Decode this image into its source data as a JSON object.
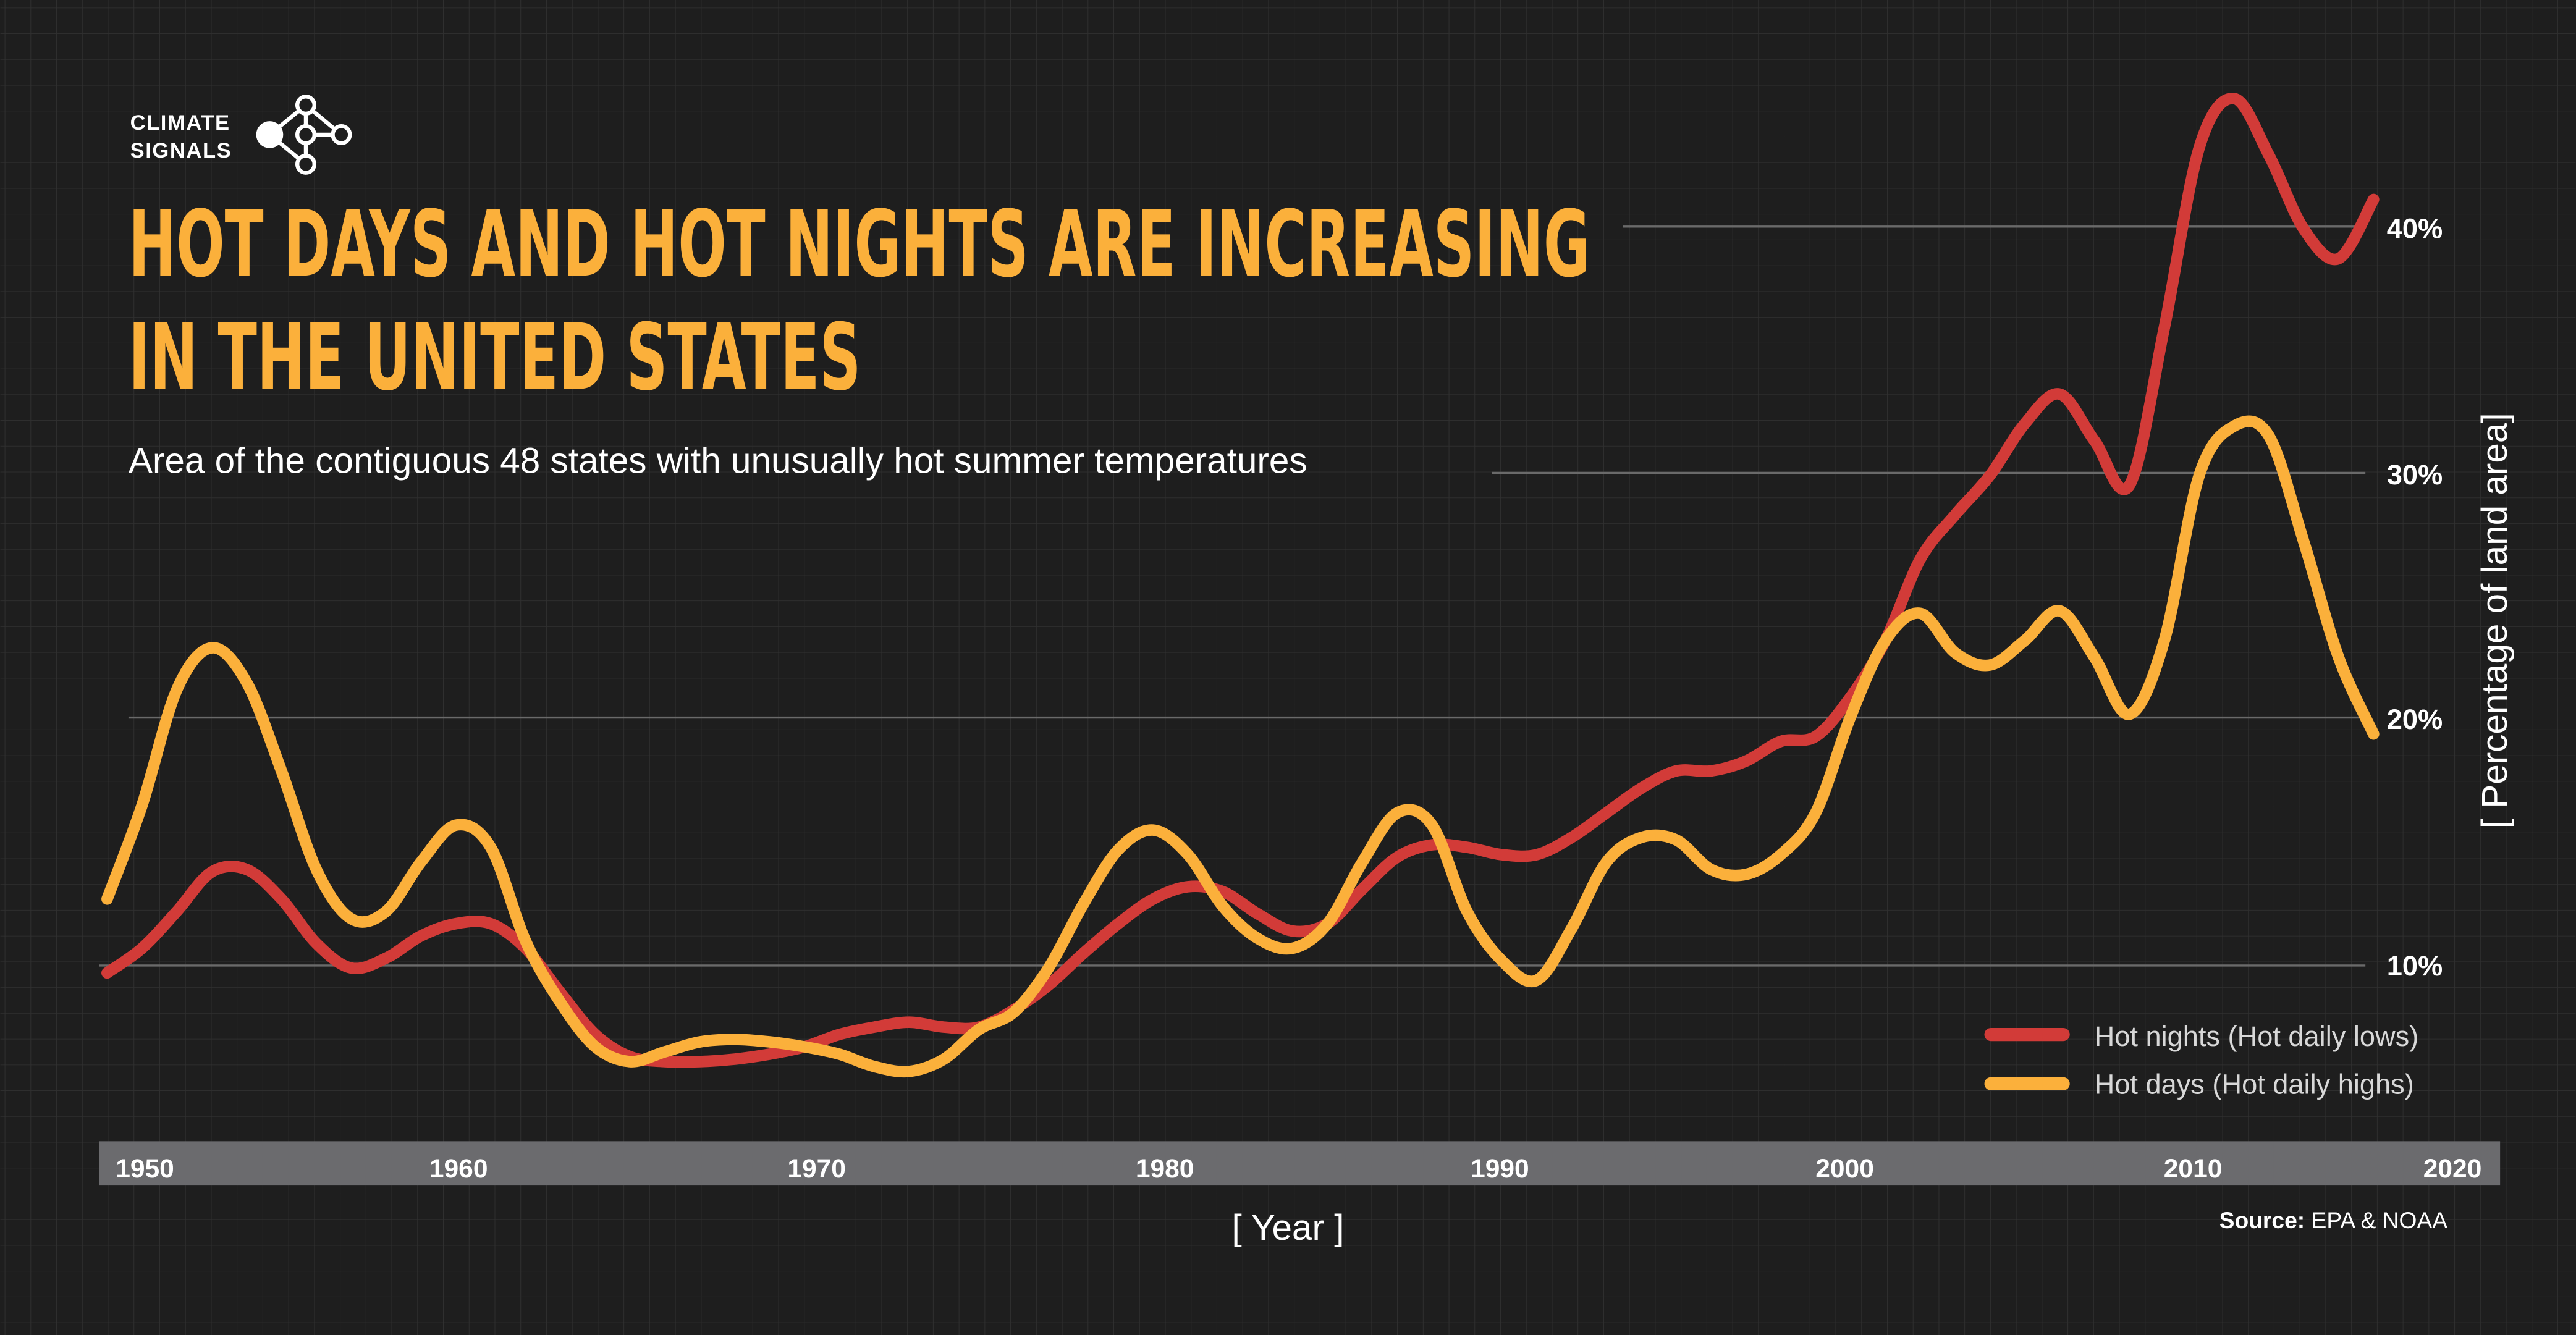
{
  "logo": {
    "line1": "CLIMATE",
    "line2": "SIGNALS",
    "icon": "network-nodes-icon"
  },
  "title": {
    "line1": "HOT DAYS AND HOT NIGHTS ARE INCREASING",
    "line2": "IN THE UNITED STATES"
  },
  "subtitle": "Area of the contiguous 48 states with unusually hot summer temperatures",
  "source": {
    "label": "Source:",
    "value": "EPA & NOAA"
  },
  "colors": {
    "background": "#1e1e1e",
    "grid": "#333333",
    "title": "#fbb03b",
    "hot_nights": "#d23b38",
    "hot_days": "#fbb03b",
    "axis_band": "#6b6b6e"
  },
  "chart_data": {
    "type": "line",
    "xlabel": "[ Year ]",
    "ylabel": "[ Percentage of land area]",
    "xlim": [
      1948.6,
      2018
    ],
    "ylim": [
      0,
      47
    ],
    "x_ticks": [
      "1950",
      "1960",
      "1970",
      "1980",
      "1990",
      "2000",
      "2010",
      "2020"
    ],
    "y_ticks": [
      {
        "value": 10,
        "label": "10%"
      },
      {
        "value": 20,
        "label": "20%"
      },
      {
        "value": 30,
        "label": "30%"
      },
      {
        "value": 40,
        "label": "40%"
      }
    ],
    "grid": true,
    "legend_position": "bottom-right",
    "x": [
      1950,
      1951,
      1952,
      1953,
      1954,
      1955,
      1956,
      1957,
      1958,
      1959,
      1960,
      1961,
      1962,
      1963,
      1964,
      1965,
      1966,
      1967,
      1968,
      1969,
      1970,
      1971,
      1972,
      1973,
      1974,
      1975,
      1976,
      1977,
      1978,
      1979,
      1980,
      1981,
      1982,
      1983,
      1984,
      1985,
      1986,
      1987,
      1988,
      1989,
      1990,
      1991,
      1992,
      1993,
      1994,
      1995,
      1996,
      1997,
      1998,
      1999,
      2000,
      2001,
      2002,
      2003,
      2004,
      2005,
      2006,
      2007,
      2008,
      2009,
      2010,
      2011,
      2012,
      2013,
      2014,
      2015
    ],
    "series": [
      {
        "name": "Hot nights (Hot daily lows)",
        "color": "#d23b38",
        "values": [
          9.7,
          10.7,
          12.2,
          13.8,
          13.9,
          12.7,
          10.9,
          9.9,
          10.3,
          11.2,
          11.7,
          11.7,
          10.7,
          8.9,
          7.2,
          6.3,
          6.1,
          6.1,
          6.2,
          6.4,
          6.7,
          7.2,
          7.5,
          7.7,
          7.5,
          7.5,
          8.2,
          9.2,
          10.5,
          11.7,
          12.7,
          13.2,
          13.0,
          12.1,
          11.4,
          11.7,
          13.1,
          14.4,
          14.9,
          14.8,
          14.5,
          14.5,
          15.2,
          16.2,
          17.2,
          17.9,
          17.9,
          18.3,
          19.1,
          19.3,
          20.9,
          23.2,
          26.5,
          28.3,
          29.9,
          32.0,
          33.2,
          31.3,
          29.5,
          35.9,
          43.2,
          45.2,
          42.9,
          39.9,
          38.7,
          41.1
        ]
      },
      {
        "name": "Hot days (Hot daily highs)",
        "color": "#fbb03b",
        "values": [
          12.7,
          16.5,
          21.2,
          22.9,
          21.5,
          17.9,
          13.9,
          11.9,
          12.2,
          14.2,
          15.7,
          14.8,
          11.0,
          8.5,
          6.7,
          6.1,
          6.5,
          6.9,
          7.0,
          6.9,
          6.7,
          6.4,
          5.9,
          5.7,
          6.2,
          7.4,
          8.1,
          9.9,
          12.5,
          14.7,
          15.5,
          14.5,
          12.4,
          11.1,
          10.7,
          11.7,
          14.2,
          16.2,
          15.7,
          12.2,
          10.2,
          9.4,
          11.5,
          14.2,
          15.2,
          15.1,
          13.9,
          13.7,
          14.5,
          16.2,
          20.1,
          23.2,
          24.3,
          22.7,
          22.2,
          23.2,
          24.4,
          22.5,
          20.2,
          23.2,
          29.9,
          31.9,
          31.5,
          27.2,
          22.5,
          19.4
        ]
      }
    ]
  }
}
